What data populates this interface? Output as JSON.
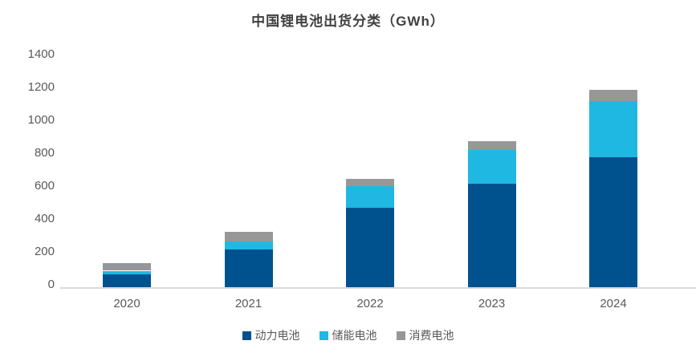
{
  "title": "中国锂电池出货分类（GWh）",
  "colors": {
    "power": "#00528F",
    "storage": "#1FB8E2",
    "consumer": "#979797",
    "axis_line": "#D9D9D9",
    "tick_text": "#595959",
    "title_text": "#404040"
  },
  "chart_data": {
    "type": "bar",
    "stacked": true,
    "title": "中国锂电池出货分类（GWh）",
    "categories": [
      "2020",
      "2021",
      "2022",
      "2023",
      "2024"
    ],
    "series": [
      {
        "name": "动力电池",
        "color": "#00528F",
        "values": [
          80,
          230,
          485,
          630,
          790
        ]
      },
      {
        "name": "储能电池",
        "color": "#1FB8E2",
        "values": [
          20,
          50,
          130,
          205,
          340
        ]
      },
      {
        "name": "消费电池",
        "color": "#979797",
        "values": [
          48,
          55,
          45,
          55,
          70
        ]
      }
    ],
    "totals": [
      148,
      335,
      660,
      890,
      1200
    ],
    "xlabel": "",
    "ylabel": "",
    "ylim": [
      0,
      1400
    ],
    "ytick_step": 200,
    "yticks": [
      0,
      200,
      400,
      600,
      800,
      1000,
      1200,
      1400
    ],
    "grid": false,
    "legend_position": "bottom"
  }
}
